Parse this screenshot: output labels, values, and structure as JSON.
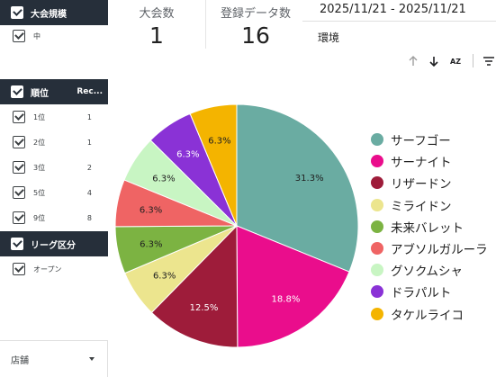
{
  "filters": [
    {
      "title": "大会規模",
      "metric": "",
      "items": [
        {
          "label": "中",
          "value": ""
        }
      ]
    },
    {
      "title": "順位",
      "metric": "Rec...",
      "items": [
        {
          "label": "1位",
          "value": "1"
        },
        {
          "label": "2位",
          "value": "1"
        },
        {
          "label": "3位",
          "value": "2"
        },
        {
          "label": "5位",
          "value": "4"
        },
        {
          "label": "9位",
          "value": "8"
        }
      ]
    },
    {
      "title": "リーグ区分",
      "metric": "",
      "items": [
        {
          "label": "オープン",
          "value": ""
        }
      ]
    }
  ],
  "store_dropdown": {
    "label": "店舗"
  },
  "scorecards": [
    {
      "label": "大会数",
      "value": "1"
    },
    {
      "label": "登録データ数",
      "value": "16"
    }
  ],
  "date_range": "2025/11/21 - 2025/11/21",
  "environment_label": "環境",
  "toolbar": {
    "icons": [
      "arrow-up-icon",
      "arrow-down-icon",
      "sort-az-icon",
      "filter-icon"
    ],
    "sort_label": "AZ"
  },
  "chart_data": {
    "type": "pie",
    "start_angle_deg": 0,
    "direction": "clockwise",
    "series": [
      {
        "name": "サーフゴー",
        "value": 31.3,
        "label": "31.3%",
        "color": "#6aaca2"
      },
      {
        "name": "サーナイト",
        "value": 18.8,
        "label": "18.8%",
        "color": "#ea0d8c"
      },
      {
        "name": "リザードン",
        "value": 12.5,
        "label": "12.5%",
        "color": "#9e1c3a"
      },
      {
        "name": "ミライドン",
        "value": 6.3,
        "label": "6.3%",
        "color": "#ece58e"
      },
      {
        "name": "未来バレット",
        "value": 6.3,
        "label": "6.3%",
        "color": "#7cb342"
      },
      {
        "name": "アブソルガルーラ",
        "value": 6.3,
        "label": "6.3%",
        "color": "#ef6464"
      },
      {
        "name": "グソクムシャ",
        "value": 6.3,
        "label": "6.3%",
        "color": "#c8f5c3"
      },
      {
        "name": "ドラパルト",
        "value": 6.3,
        "label": "6.3%",
        "color": "#8a32d6"
      },
      {
        "name": "タケルライコ",
        "value": 6.3,
        "label": "6.3%",
        "color": "#f4b400"
      }
    ]
  }
}
